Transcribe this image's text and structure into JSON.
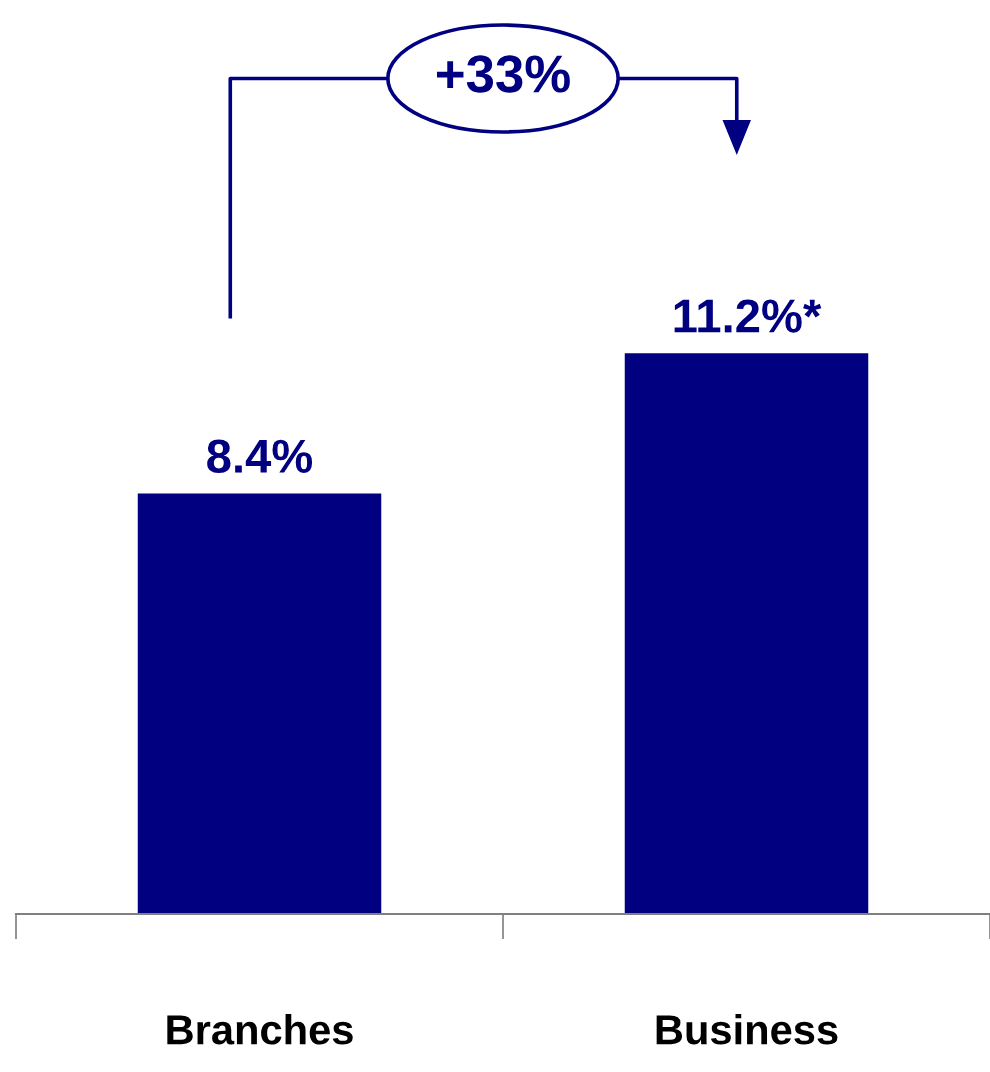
{
  "chart_data": {
    "type": "bar",
    "categories": [
      "Branches",
      "Business"
    ],
    "values": [
      8.4,
      11.2
    ],
    "value_labels": [
      "8.4%",
      "11.2%*"
    ],
    "color": "#000080",
    "annotations": [
      "+33%"
    ]
  }
}
